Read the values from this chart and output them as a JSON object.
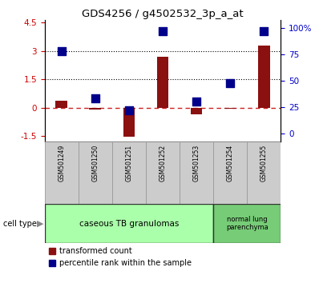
{
  "title": "GDS4256 / g4502532_3p_a_at",
  "samples": [
    "GSM501249",
    "GSM501250",
    "GSM501251",
    "GSM501252",
    "GSM501253",
    "GSM501254",
    "GSM501255"
  ],
  "transformed_count": [
    0.35,
    -0.1,
    -1.55,
    2.7,
    -0.35,
    -0.05,
    3.3
  ],
  "percentile_rank_raw": [
    78,
    33,
    22,
    97,
    30,
    48,
    97
  ],
  "ylim_left": [
    -1.8,
    4.65
  ],
  "ylim_right": [
    -8.0,
    108.0
  ],
  "yticks_left": [
    -1.5,
    0.0,
    1.5,
    3.0,
    4.5
  ],
  "ytick_labels_left": [
    "-1.5",
    "0",
    "1.5",
    "3",
    "4.5"
  ],
  "yticks_right": [
    0,
    25,
    50,
    75,
    100
  ],
  "ytick_labels_right": [
    "0",
    "25",
    "50",
    "75",
    "100%"
  ],
  "bar_color": "#8B1010",
  "dot_color": "#00008B",
  "bar_width": 0.35,
  "dot_size": 45,
  "left_tick_color": "#CC0000",
  "right_tick_color": "#0000CC",
  "legend_red_label": "transformed count",
  "legend_blue_label": "percentile rank within the sample",
  "cell_type_label": "cell type",
  "group1_label": "caseous TB granulomas",
  "group1_color": "#AAFFAA",
  "group2_label": "normal lung\nparenchyma",
  "group2_color": "#77CC77",
  "group1_count": 5,
  "group2_count": 2,
  "sample_box_color": "#CCCCCC",
  "sample_box_edge": "#999999"
}
